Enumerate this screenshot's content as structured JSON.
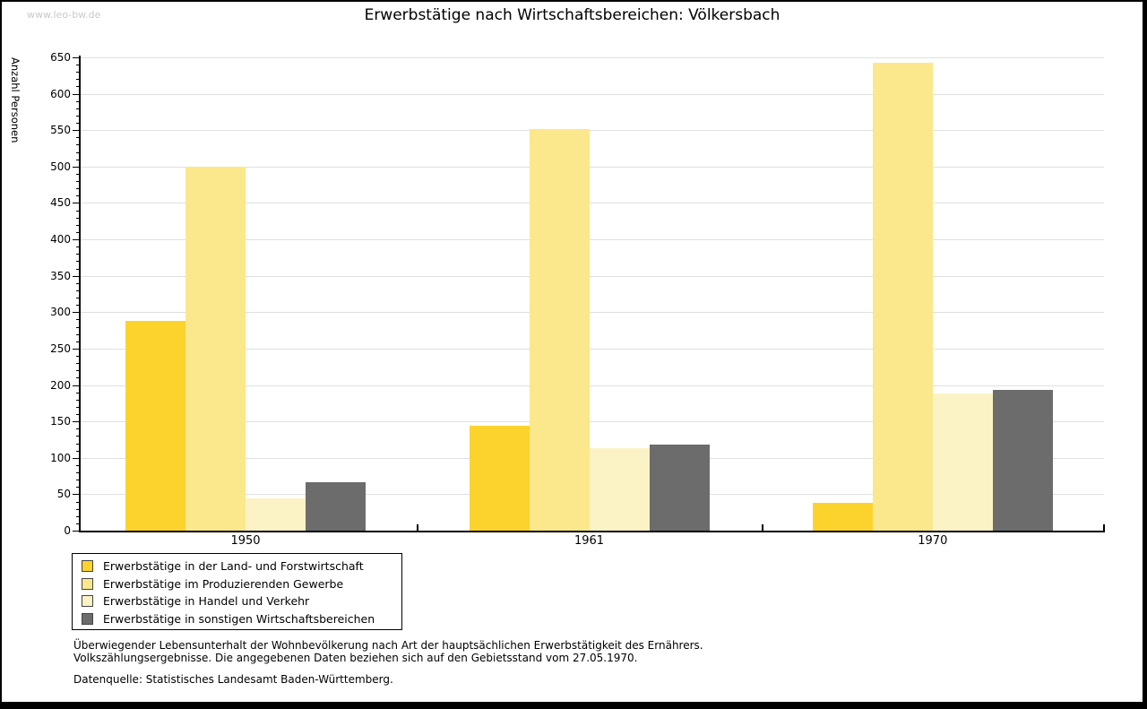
{
  "watermark": "www.leo-bw.de",
  "header": {
    "title": "Erwerbstätige nach Wirtschaftsbereichen: Völkersbach"
  },
  "footnotes": {
    "line1": "Überwiegender Lebensunterhalt der Wohnbevölkerung nach Art der hauptsächlichen Erwerbstätigkeit des Ernährers.",
    "line2": "Volkszählungsergebnisse. Die angegebenen Daten beziehen sich auf den Gebietsstand vom 27.05.1970.",
    "source": "Datenquelle: Statistisches Landesamt Baden-Württemberg."
  },
  "chart_data": {
    "type": "bar",
    "title": "Erwerbstätige nach Wirtschaftsbereichen: Völkersbach",
    "categories": [
      "1950",
      "1961",
      "1970"
    ],
    "series": [
      {
        "name": "Erwerbstätige in der Land- und Forstwirtschaft",
        "color": "#FCD32D",
        "values": [
          288,
          144,
          38
        ]
      },
      {
        "name": "Erwerbstätige im Produzierenden Gewerbe",
        "color": "#FCE88C",
        "values": [
          500,
          551,
          642
        ]
      },
      {
        "name": "Erwerbstätige in Handel und Verkehr",
        "color": "#FBF3C6",
        "values": [
          44,
          113,
          188
        ]
      },
      {
        "name": "Erwerbstätige in sonstigen Wirtschaftsbereichen",
        "color": "#6C6C6C",
        "values": [
          67,
          118,
          193
        ]
      }
    ],
    "xlabel": "",
    "ylabel": "Anzahl Personen",
    "ylim": [
      0,
      650
    ],
    "y_major_step": 50,
    "y_minor_step": 10,
    "grid": true,
    "legend_position": "bottom-left",
    "colors": {
      "gridline": "#e0e0e0",
      "axis": "#000000",
      "background": "#ffffff"
    }
  }
}
